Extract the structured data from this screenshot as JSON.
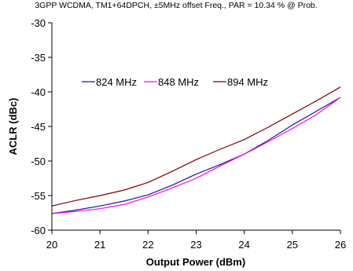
{
  "chart_data": {
    "type": "line",
    "title": "3GPP WCDMA, TM1+64DPCH, ±5MHz offset Freq., PAR = 10.34 % @ Prob.",
    "xlabel": "Output Power (dBm)",
    "ylabel": "ACLR (dBc)",
    "xlim": [
      20,
      26
    ],
    "ylim": [
      -60,
      -30
    ],
    "xticks": [
      20,
      21,
      22,
      23,
      24,
      25,
      26
    ],
    "yticks": [
      -60,
      -55,
      -50,
      -45,
      -40,
      -35,
      -30
    ],
    "xtick_labels": [
      "20",
      "21",
      "22",
      "23",
      "24",
      "25",
      "26"
    ],
    "ytick_labels": [
      "-60",
      "-55",
      "-50",
      "-45",
      "-40",
      "-35",
      "-30"
    ],
    "grid": false,
    "legend_position": "top-center",
    "series": [
      {
        "name": "824 MHz",
        "color": "#1a1a8c",
        "x": [
          20,
          20.5,
          21,
          21.5,
          22,
          22.5,
          23,
          23.5,
          24,
          24.5,
          25,
          25.5,
          26
        ],
        "y": [
          -57.6,
          -57.1,
          -56.5,
          -55.8,
          -54.9,
          -53.5,
          -51.9,
          -50.5,
          -49.0,
          -47.0,
          -44.8,
          -42.8,
          -40.8
        ]
      },
      {
        "name": "848 MHz",
        "color": "#ff00ff",
        "x": [
          20,
          20.5,
          21,
          21.5,
          22,
          22.5,
          23,
          23.5,
          24,
          24.5,
          25,
          25.5,
          26
        ],
        "y": [
          -57.6,
          -57.3,
          -56.9,
          -56.3,
          -55.2,
          -53.9,
          -52.5,
          -50.7,
          -49.0,
          -47.2,
          -45.3,
          -43.3,
          -40.8
        ]
      },
      {
        "name": "894 MHz",
        "color": "#800000",
        "x": [
          20,
          20.5,
          21,
          21.5,
          22,
          22.5,
          23,
          23.5,
          24,
          24.5,
          25,
          25.5,
          26
        ],
        "y": [
          -56.5,
          -55.7,
          -55.0,
          -54.2,
          -53.1,
          -51.5,
          -49.8,
          -48.3,
          -46.9,
          -45.1,
          -43.2,
          -41.3,
          -39.3
        ]
      }
    ]
  }
}
